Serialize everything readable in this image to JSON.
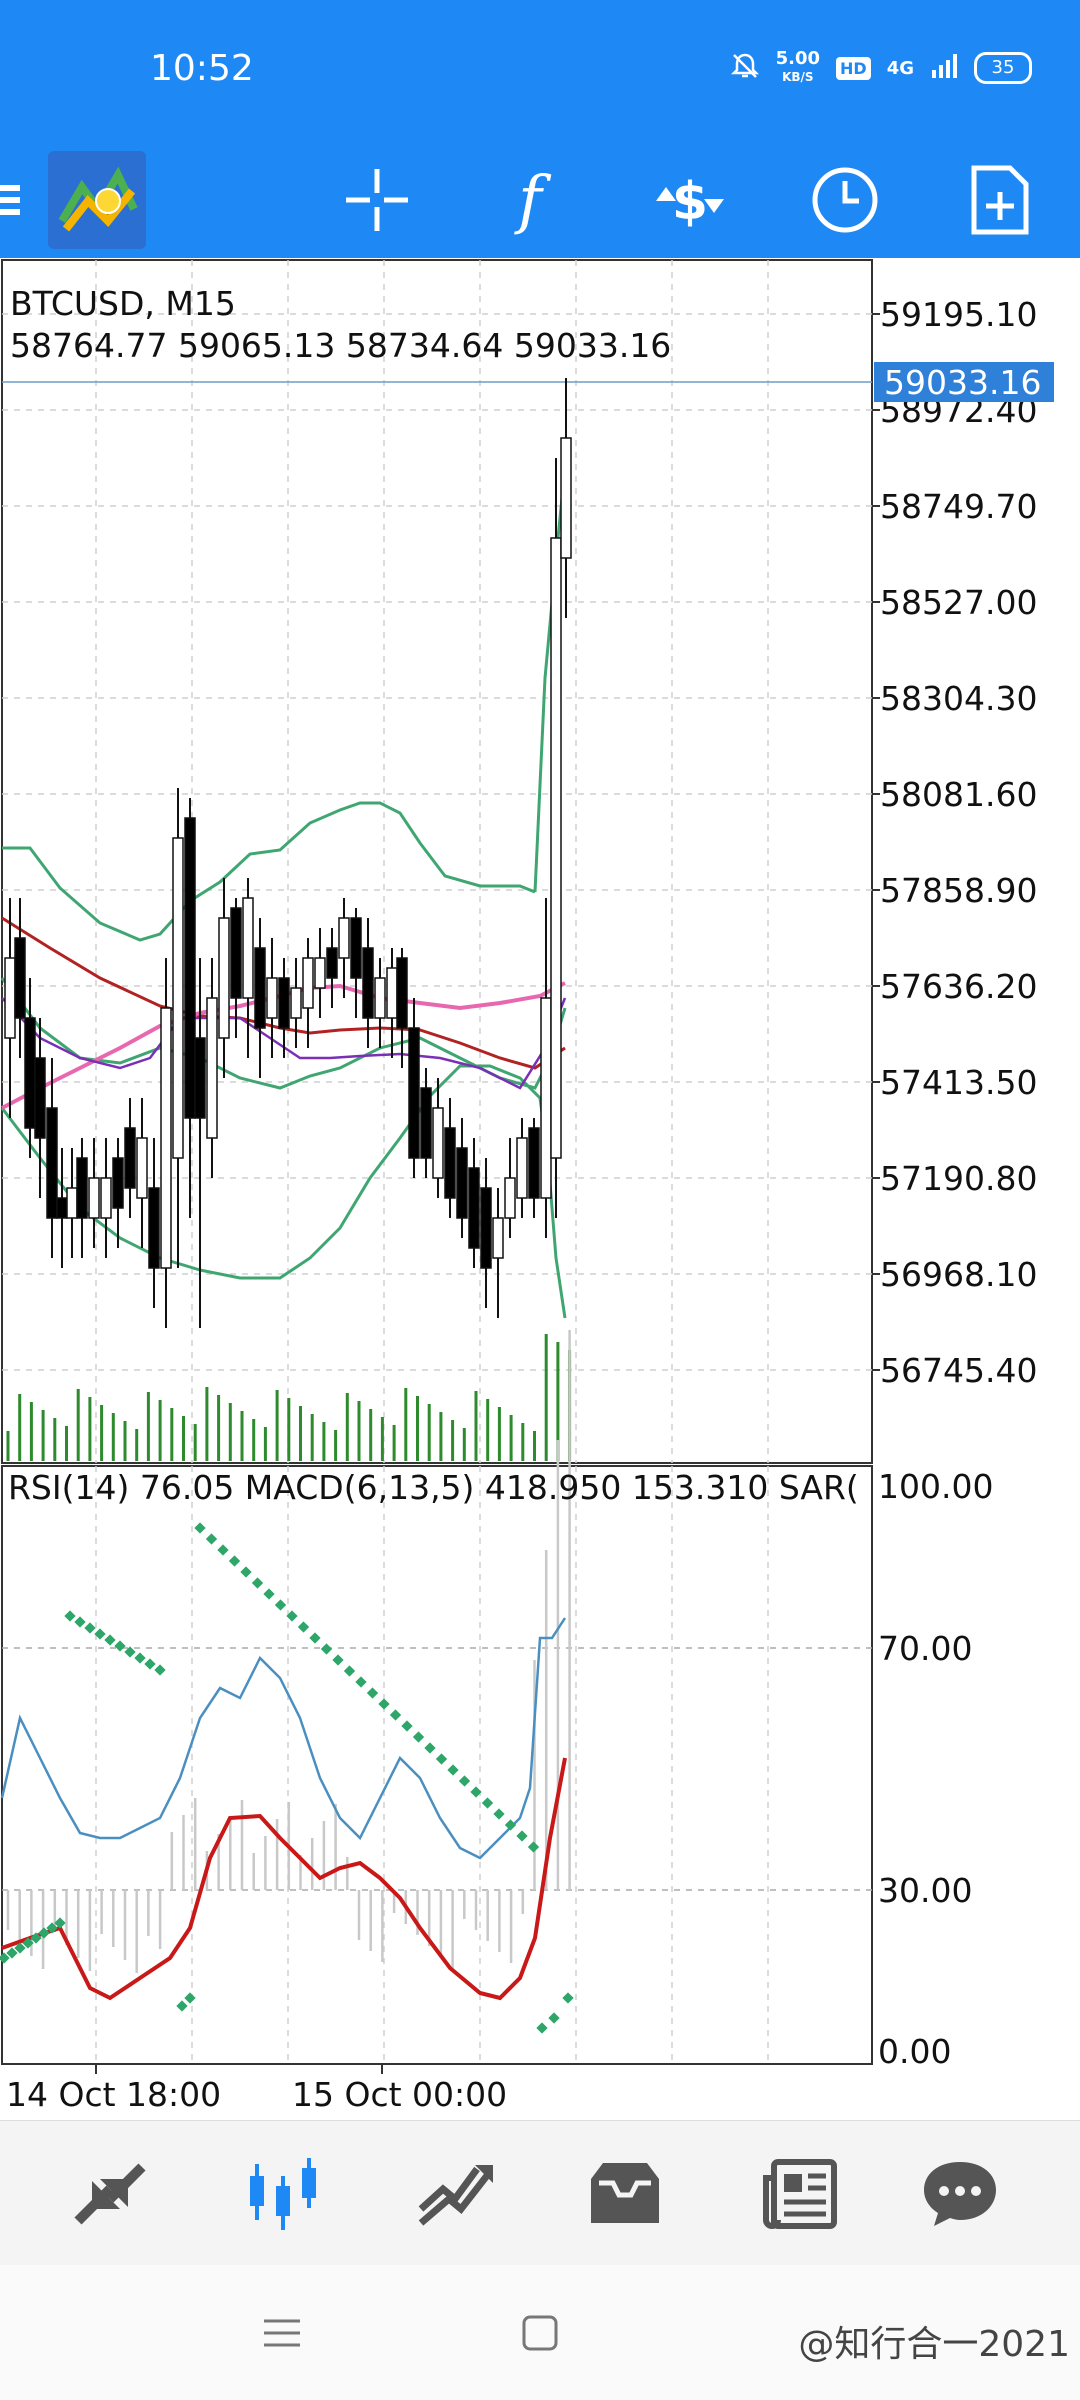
{
  "status_bar": {
    "time": "10:52",
    "net_speed": "5.00",
    "net_speed_unit": "KB/S",
    "hd": "HD",
    "network": "4G",
    "battery": "35"
  },
  "toolbar": {
    "icons": [
      "menu-icon",
      "metatrader-logo",
      "crosshair-icon",
      "indicators-icon",
      "trade-icon",
      "timeframe-icon",
      "objects-icon"
    ]
  },
  "chart": {
    "symbol": "BTCUSD, M15",
    "ohlc": "58764.77 59065.13 58734.64 59033.16",
    "current_price": "59033.16",
    "price_axis": [
      "59195.10",
      "58972.40",
      "58749.70",
      "58527.00",
      "58304.30",
      "58081.60",
      "57858.90",
      "57636.20",
      "57413.50",
      "57190.80",
      "56968.10",
      "56745.40"
    ],
    "indicator_label": "RSI(14) 76.05 MACD(6,13,5) 418.950 153.310 SAR(",
    "indicator_axis": [
      "100.00",
      "70.00",
      "30.00",
      "0.00"
    ],
    "time_axis": [
      "14 Oct 18:00",
      "15 Oct 00:00"
    ],
    "colors": {
      "bullish": "#ffffff",
      "bearish": "#000000",
      "bollinger": "#3fa672",
      "ma_red": "#b22222",
      "ma_pink": "#e868b0",
      "ma_purple": "#7a2fb5",
      "rsi": "#4a8fc0",
      "macd": "#c81818",
      "sar": "#2ea66a",
      "volume": "#2d8a2d"
    }
  },
  "bottom_nav": {
    "items": [
      "quotes-icon",
      "chart-icon",
      "trade-icon",
      "history-icon",
      "news-icon",
      "messages-icon"
    ],
    "active": "chart-icon"
  },
  "system_nav": {
    "watermark": "@知行合一2021"
  }
}
